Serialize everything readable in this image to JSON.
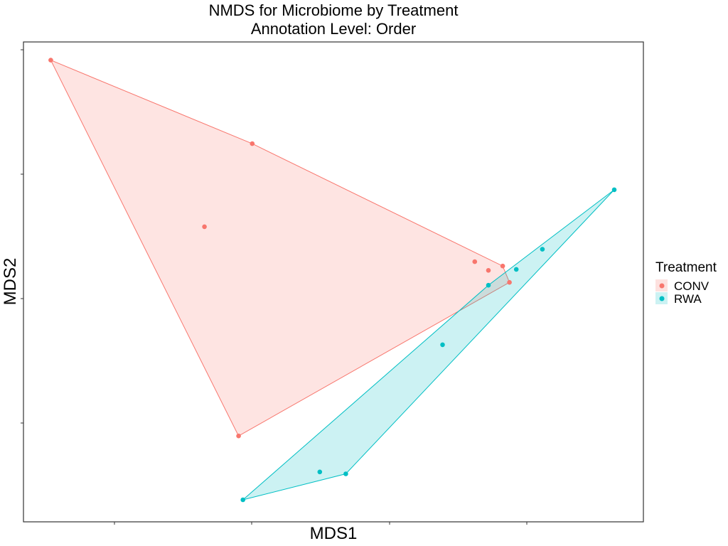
{
  "chart_data": {
    "type": "scatter",
    "title": [
      "NMDS for Microbiome by Treatment",
      "Annotation Level: Order"
    ],
    "xlabel": "MDS1",
    "ylabel": "MDS2",
    "xlim": [
      0,
      100
    ],
    "ylim": [
      0,
      100
    ],
    "grid": false,
    "legend": {
      "title": "Treatment",
      "position": "right"
    },
    "series": [
      {
        "name": "CONV",
        "color": "#F8766D",
        "fill": "#FDE1DF",
        "points": [
          {
            "x": 4.4,
            "y": 96.2
          },
          {
            "x": 36.9,
            "y": 78.8
          },
          {
            "x": 29.2,
            "y": 61.5
          },
          {
            "x": 72.8,
            "y": 54.2
          },
          {
            "x": 75.0,
            "y": 52.4
          },
          {
            "x": 77.3,
            "y": 53.3
          },
          {
            "x": 78.4,
            "y": 49.9
          },
          {
            "x": 34.7,
            "y": 17.9
          }
        ],
        "hull": [
          0,
          1,
          5,
          6,
          7
        ]
      },
      {
        "name": "RWA",
        "color": "#00BFC4",
        "fill": "#CCF2F3",
        "points": [
          {
            "x": 95.3,
            "y": 69.2
          },
          {
            "x": 83.7,
            "y": 56.8
          },
          {
            "x": 79.5,
            "y": 52.6
          },
          {
            "x": 75.0,
            "y": 49.3
          },
          {
            "x": 67.6,
            "y": 36.9
          },
          {
            "x": 52.0,
            "y": 10.0
          },
          {
            "x": 47.8,
            "y": 10.4
          },
          {
            "x": 35.4,
            "y": 4.6
          }
        ],
        "hull": [
          0,
          5,
          7,
          3
        ]
      }
    ]
  }
}
